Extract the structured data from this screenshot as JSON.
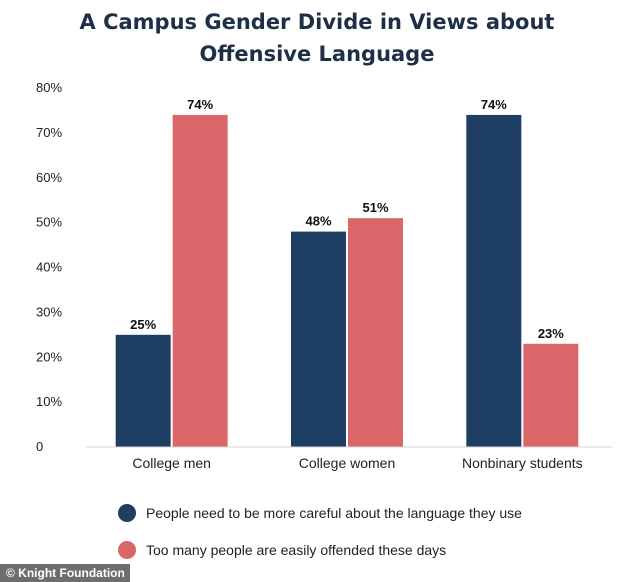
{
  "chart_data": {
    "type": "bar",
    "title_lines": [
      "A Campus Gender Divide in Views about",
      "Offensive Language"
    ],
    "categories": [
      "College men",
      "College women",
      "Nonbinary students"
    ],
    "series": [
      {
        "name": "People need to be more careful about the language they use",
        "color": "#1f3e63",
        "values": [
          25,
          48,
          74
        ],
        "labels": [
          "25%",
          "48%",
          "74%"
        ]
      },
      {
        "name": "Too many people are easily offended these days",
        "color": "#d9676a",
        "values": [
          74,
          51,
          23
        ],
        "labels": [
          "74%",
          "51%",
          "23%"
        ]
      }
    ],
    "y_ticks": [
      0,
      10,
      20,
      30,
      40,
      50,
      60,
      70,
      80
    ],
    "y_tick_labels": [
      "0",
      "10%",
      "20%",
      "30%",
      "40%",
      "50%",
      "60%",
      "70%",
      "80%"
    ],
    "ylim": [
      0,
      80
    ],
    "grid": false,
    "legend_position": "bottom"
  },
  "credit": "© Knight Foundation"
}
